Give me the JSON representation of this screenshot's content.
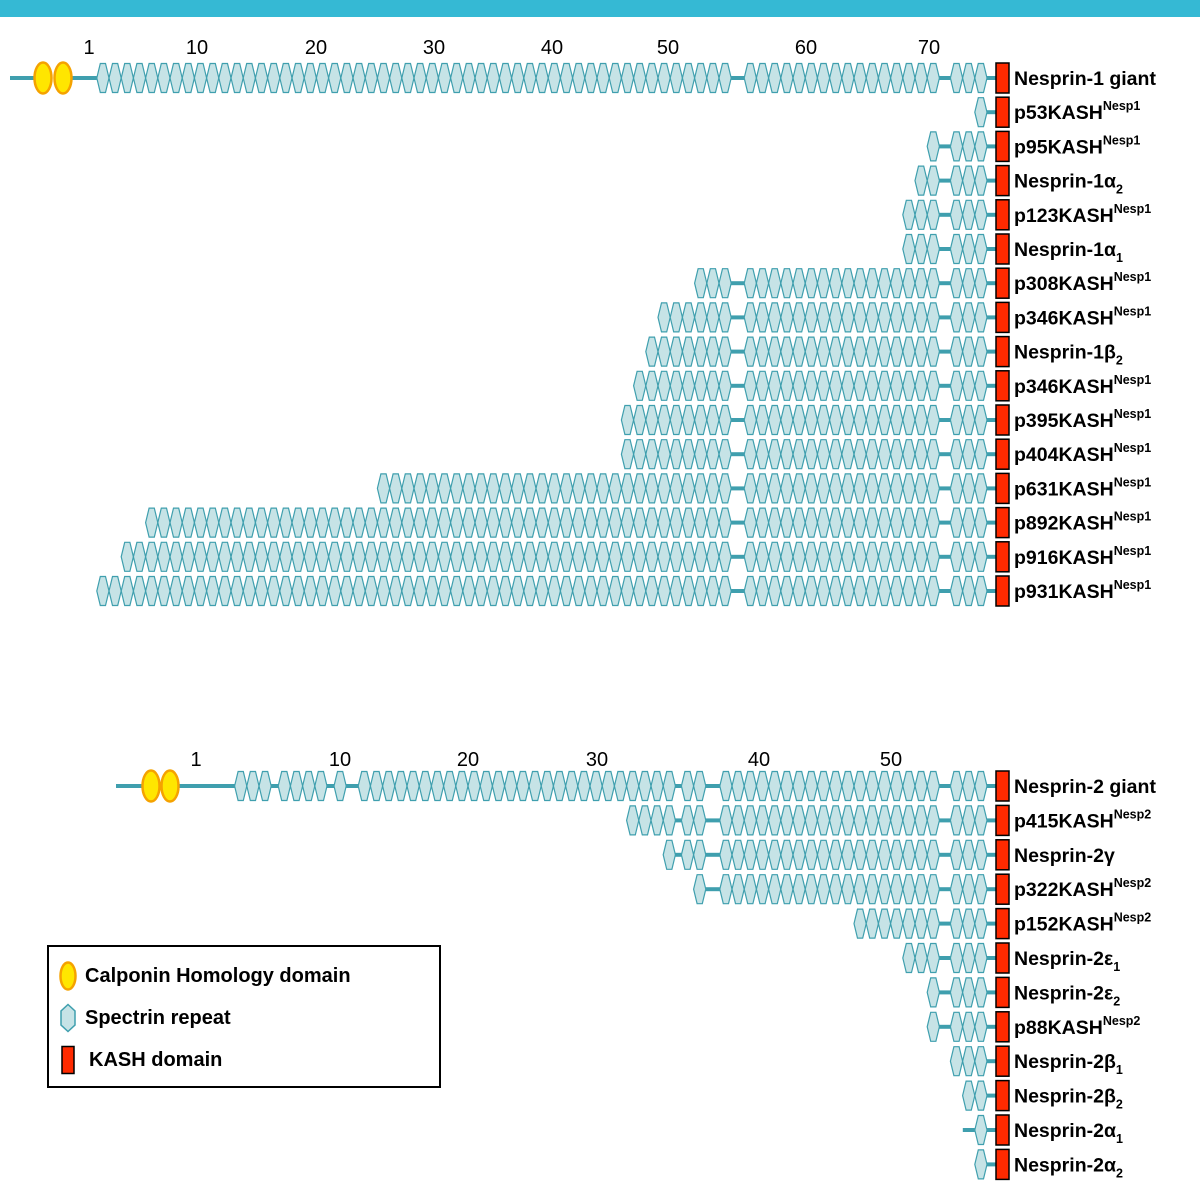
{
  "colors": {
    "top_bar": "#35b9d4",
    "spectrin_fill": "#c6e3e6",
    "spectrin_stroke": "#3f9fae",
    "linker": "#3f9fae",
    "ch_fill": "#ffe600",
    "ch_stroke": "#f5a200",
    "kash_fill": "#ff2a00",
    "kash_stroke": "#000000"
  },
  "nesprin1": {
    "repeat_ticks": [
      "1",
      "10",
      "20",
      "30",
      "40",
      "50",
      "60",
      "70"
    ],
    "isoforms": [
      {
        "name": "Nesprin-1 giant",
        "sup": "",
        "sub": "",
        "first_repeat": 1,
        "calponin_domains": 2
      },
      {
        "name": "p53KASH",
        "sup": "Nesp1",
        "sub": "",
        "first_repeat": 72
      },
      {
        "name": "p95KASH",
        "sup": "Nesp1",
        "sub": "",
        "first_repeat": 68
      },
      {
        "name": "Nesprin-1α",
        "sup": "",
        "sub": "2",
        "first_repeat": 67
      },
      {
        "name": "p123KASH",
        "sup": "Nesp1",
        "sub": "",
        "first_repeat": 66
      },
      {
        "name": "Nesprin-1α",
        "sup": "",
        "sub": "1",
        "first_repeat": 66
      },
      {
        "name": "p308KASH",
        "sup": "Nesp1",
        "sub": "",
        "first_repeat": 50
      },
      {
        "name": "p346KASH",
        "sup": "Nesp1",
        "sub": "",
        "first_repeat": 47
      },
      {
        "name": "Nesprin-1β",
        "sup": "",
        "sub": "2",
        "first_repeat": 46
      },
      {
        "name": "p346KASH",
        "sup": "Nesp1",
        "sub": "",
        "first_repeat": 45
      },
      {
        "name": "p395KASH",
        "sup": "Nesp1",
        "sub": "",
        "first_repeat": 44
      },
      {
        "name": "p404KASH",
        "sup": "Nesp1",
        "sub": "",
        "first_repeat": 44
      },
      {
        "name": "p631KASH",
        "sup": "Nesp1",
        "sub": "",
        "first_repeat": 24
      },
      {
        "name": "p892KASH",
        "sup": "Nesp1",
        "sub": "",
        "first_repeat": 5
      },
      {
        "name": "p916KASH",
        "sup": "Nesp1",
        "sub": "",
        "first_repeat": 3
      },
      {
        "name": "p931KASH",
        "sup": "Nesp1",
        "sub": "",
        "first_repeat": 1
      }
    ]
  },
  "nesprin2": {
    "repeat_ticks": [
      "1",
      "10",
      "20",
      "30",
      "40",
      "50"
    ],
    "isoforms": [
      {
        "name": "Nesprin-2 giant",
        "sup": "",
        "sub": "",
        "first_repeat": 1,
        "calponin_domains": 2
      },
      {
        "name": "p415KASH",
        "sup": "Nesp2",
        "sub": "",
        "first_repeat": 31
      },
      {
        "name": "Nesprin-2γ",
        "sup": "",
        "sub": "",
        "first_repeat": 34
      },
      {
        "name": "p322KASH",
        "sup": "Nesp2",
        "sub": "",
        "first_repeat": 36
      },
      {
        "name": "p152KASH",
        "sup": "Nesp2",
        "sub": "",
        "first_repeat": 48
      },
      {
        "name": "Nesprin-2ε",
        "sup": "",
        "sub": "1",
        "first_repeat": 52
      },
      {
        "name": "Nesprin-2ε",
        "sup": "",
        "sub": "2",
        "first_repeat": 54
      },
      {
        "name": "p88KASH",
        "sup": "Nesp2",
        "sub": "",
        "first_repeat": 54
      },
      {
        "name": "Nesprin-2β",
        "sup": "",
        "sub": "1",
        "first_repeat": 55
      },
      {
        "name": "Nesprin-2β",
        "sup": "",
        "sub": "2",
        "first_repeat": 56
      },
      {
        "name": "Nesprin-2α",
        "sup": "",
        "sub": "1",
        "first_repeat": 57
      },
      {
        "name": "Nesprin-2α",
        "sup": "",
        "sub": "2",
        "first_repeat": 57
      }
    ]
  },
  "legend": {
    "calponin": "Calponin Homology domain",
    "spectrin": "Spectrin repeat",
    "kash": "KASH domain"
  }
}
